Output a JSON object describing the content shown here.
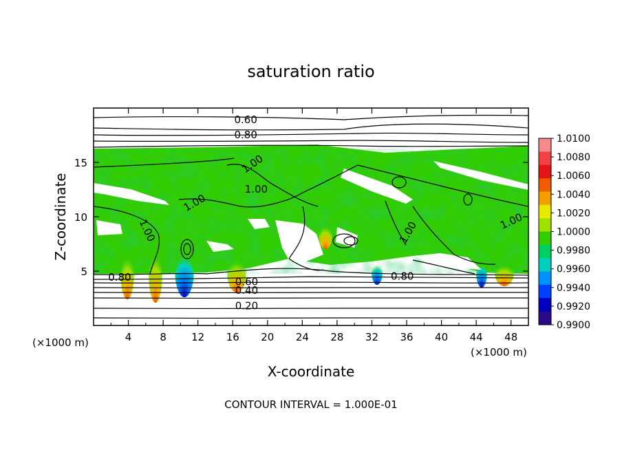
{
  "chart_data": {
    "type": "heatmap",
    "title": "saturation ratio",
    "xlabel": "X-coordinate",
    "ylabel": "Z-coordinate",
    "x_unit_label": "(×1000 m)",
    "z_unit_label": "(×1000 m)",
    "xlim": [
      0,
      50
    ],
    "ylim": [
      0,
      20
    ],
    "x_ticks": [
      "4",
      "8",
      "12",
      "16",
      "20",
      "24",
      "28",
      "32",
      "36",
      "40",
      "44",
      "48"
    ],
    "y_ticks": [
      "5",
      "10",
      "15"
    ],
    "contour_interval_text": "CONTOUR INTERVAL = 1.000E-01",
    "colorbar": {
      "ticks": [
        "1.0100",
        "1.0080",
        "1.0060",
        "1.0040",
        "1.0020",
        "1.0000",
        "0.9980",
        "0.9960",
        "0.9940",
        "0.9920",
        "0.9900"
      ],
      "colors": [
        "#f48a8a",
        "#f44040",
        "#e61414",
        "#f05a00",
        "#f5a000",
        "#e8e800",
        "#a0e000",
        "#33cc00",
        "#00d060",
        "#00d0c0",
        "#0090ff",
        "#0040ff",
        "#0000c0",
        "#2a0a88"
      ]
    },
    "contour_labels": [
      {
        "text": "0.60",
        "x": 17.5,
        "y": 18.6
      },
      {
        "text": "0.80",
        "x": 17.5,
        "y": 17.2
      },
      {
        "text": "1.00",
        "x": 18.5,
        "y": 14.6,
        "rot": 35
      },
      {
        "text": "1.00",
        "x": 18.7,
        "y": 12.2
      },
      {
        "text": "1.00",
        "x": 11.8,
        "y": 11.0,
        "rot": 30
      },
      {
        "text": "1.00",
        "x": 5.8,
        "y": 8.6,
        "rot": -65
      },
      {
        "text": "1.00",
        "x": 36.5,
        "y": 8.4,
        "rot": 60
      },
      {
        "text": "1.00",
        "x": 48.2,
        "y": 9.3,
        "rot": 25
      },
      {
        "text": "0.80",
        "x": 3.0,
        "y": 4.1
      },
      {
        "text": "0.80",
        "x": 35.5,
        "y": 4.2
      },
      {
        "text": "0.60",
        "x": 17.6,
        "y": 3.7
      },
      {
        "text": "0.40",
        "x": 17.6,
        "y": 2.9
      },
      {
        "text": "0.20",
        "x": 17.6,
        "y": 1.5
      }
    ]
  }
}
